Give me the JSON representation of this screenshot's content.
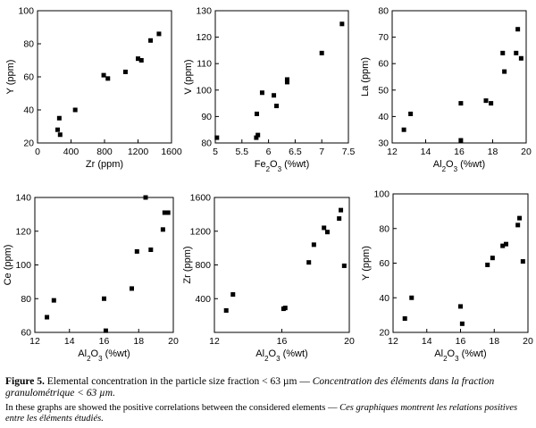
{
  "chart_data": [
    {
      "type": "scatter",
      "title": "",
      "xlabel": "Zr (ppm)",
      "ylabel": "Y (ppm)",
      "xlim": [
        0,
        1600
      ],
      "ylim": [
        20,
        100
      ],
      "xticks": [
        "0",
        "400",
        "800",
        "1200",
        "1600"
      ],
      "yticks": [
        "20",
        "40",
        "60",
        "80",
        "100"
      ],
      "series": [
        {
          "points": [
            [
              240,
              28
            ],
            [
              260,
              35
            ],
            [
              270,
              25
            ],
            [
              450,
              40
            ],
            [
              790,
              61
            ],
            [
              840,
              59
            ],
            [
              1050,
              63
            ],
            [
              1200,
              71
            ],
            [
              1240,
              70
            ],
            [
              1350,
              82
            ],
            [
              1450,
              86
            ]
          ]
        }
      ]
    },
    {
      "type": "scatter",
      "title": "",
      "xlabel": "Fe2O3 (%wt)",
      "ylabel": "V (ppm)",
      "xlim": [
        5,
        7.5
      ],
      "ylim": [
        80,
        130
      ],
      "xticks": [
        "5",
        "5.5",
        "6",
        "6.5",
        "7",
        "7.5"
      ],
      "yticks": [
        "80",
        "90",
        "100",
        "110",
        "120",
        "130"
      ],
      "series": [
        {
          "points": [
            [
              5.03,
              82
            ],
            [
              5.77,
              82
            ],
            [
              5.8,
              83
            ],
            [
              5.78,
              91
            ],
            [
              5.88,
              99
            ],
            [
              6.1,
              98
            ],
            [
              6.15,
              94
            ],
            [
              6.35,
              103
            ],
            [
              6.35,
              104
            ],
            [
              7.0,
              114
            ],
            [
              7.38,
              125
            ]
          ]
        }
      ]
    },
    {
      "type": "scatter",
      "title": "",
      "xlabel": "Al2O3 (%wt)",
      "ylabel": "La (ppm)",
      "xlim": [
        12,
        20
      ],
      "ylim": [
        30,
        80
      ],
      "xticks": [
        "12",
        "14",
        "16",
        "18",
        "20"
      ],
      "yticks": [
        "30",
        "40",
        "50",
        "60",
        "70",
        "80"
      ],
      "series": [
        {
          "points": [
            [
              12.7,
              35
            ],
            [
              13.1,
              41
            ],
            [
              16.1,
              45
            ],
            [
              16.1,
              31
            ],
            [
              17.6,
              46
            ],
            [
              17.9,
              45
            ],
            [
              18.6,
              64
            ],
            [
              18.7,
              57
            ],
            [
              19.4,
              64
            ],
            [
              19.5,
              73
            ],
            [
              19.7,
              62
            ]
          ]
        }
      ]
    },
    {
      "type": "scatter",
      "title": "",
      "xlabel": "Al2O3 (%wt)",
      "ylabel": "Ce (ppm)",
      "xlim": [
        12,
        20
      ],
      "ylim": [
        60,
        140
      ],
      "xticks": [
        "12",
        "14",
        "16",
        "18",
        "20"
      ],
      "yticks": [
        "60",
        "80",
        "100",
        "120",
        "140"
      ],
      "series": [
        {
          "points": [
            [
              12.7,
              69
            ],
            [
              13.1,
              79
            ],
            [
              16.0,
              80
            ],
            [
              16.1,
              61
            ],
            [
              17.6,
              86
            ],
            [
              17.9,
              108
            ],
            [
              18.4,
              140
            ],
            [
              18.7,
              109
            ],
            [
              19.4,
              121
            ],
            [
              19.5,
              131
            ],
            [
              19.7,
              131
            ]
          ]
        }
      ]
    },
    {
      "type": "scatter",
      "title": "",
      "xlabel": "Al2O3 (%wt)",
      "ylabel": "Zr (ppm)",
      "xlim": [
        12,
        20
      ],
      "ylim": [
        0,
        1600
      ],
      "xticks": [
        "12",
        "16",
        "20"
      ],
      "yticks": [
        "400",
        "800",
        "1200",
        "1600"
      ],
      "yticks_values": [
        400,
        800,
        1200,
        1600
      ],
      "series": [
        {
          "points": [
            [
              12.7,
              260
            ],
            [
              13.1,
              450
            ],
            [
              16.1,
              280
            ],
            [
              16.2,
              290
            ],
            [
              17.6,
              830
            ],
            [
              17.9,
              1040
            ],
            [
              18.5,
              1240
            ],
            [
              18.7,
              1190
            ],
            [
              19.4,
              1350
            ],
            [
              19.5,
              1450
            ],
            [
              19.7,
              790
            ]
          ]
        }
      ]
    },
    {
      "type": "scatter",
      "title": "",
      "xlabel": "Al2O3 (%wt)",
      "ylabel": "Y (ppm)",
      "xlim": [
        12,
        20
      ],
      "ylim": [
        20,
        100
      ],
      "xticks": [
        "12",
        "14",
        "16",
        "18",
        "20"
      ],
      "yticks": [
        "20",
        "40",
        "60",
        "80",
        "100"
      ],
      "series": [
        {
          "points": [
            [
              12.7,
              28
            ],
            [
              13.1,
              40
            ],
            [
              16.0,
              35
            ],
            [
              16.1,
              25
            ],
            [
              17.6,
              59
            ],
            [
              17.9,
              63
            ],
            [
              18.5,
              70
            ],
            [
              18.7,
              71
            ],
            [
              19.4,
              82
            ],
            [
              19.5,
              86
            ],
            [
              19.7,
              61
            ]
          ]
        }
      ]
    }
  ],
  "caption": {
    "figure_label": "Figure 5.",
    "english": "Elemental concentration in the particle size fraction < 63 µm",
    "separator": "—",
    "french": "Concentration des éléments dans la fraction granulométrique < 63 µm.",
    "note_english": "In these graphs are showed the positive correlations between the considered elements",
    "note_separator": "—",
    "note_french": "Ces graphiques montrent les relations positives entre les éléments étudiés."
  }
}
